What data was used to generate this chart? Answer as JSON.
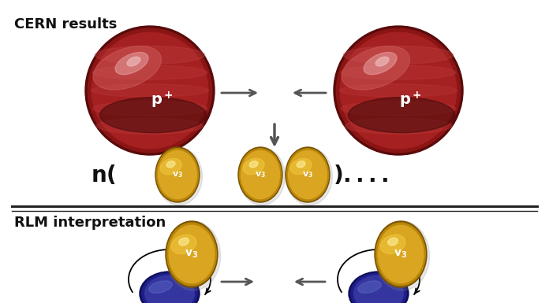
{
  "title_top": "CERN results",
  "title_bottom": "RLM interpretation",
  "background_color": "#ffffff",
  "arrow_color": "#555555",
  "separator_color": "#222222",
  "text_color_black": "#111111"
}
